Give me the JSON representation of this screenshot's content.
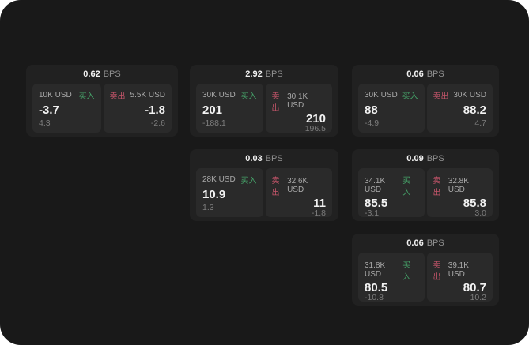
{
  "labels": {
    "bps": "BPS",
    "buy": "买入",
    "sell": "卖出"
  },
  "colors": {
    "page_background": "#191919",
    "card_background": "#212121",
    "panel_background": "#2a2a2a",
    "buy_green": "#45a168",
    "sell_red": "#c4556a"
  },
  "cards": [
    {
      "bps": "0.62",
      "buy": {
        "size": "10K USD",
        "value": "-3.7",
        "sub": "4.3"
      },
      "sell": {
        "size": "5.5K USD",
        "value": "-1.8",
        "sub": "-2.6"
      }
    },
    {
      "bps": "2.92",
      "buy": {
        "size": "30K USD",
        "value": "201",
        "sub": "-188.1"
      },
      "sell": {
        "size": "30.1K USD",
        "value": "210",
        "sub": "196.5"
      }
    },
    {
      "bps": "0.06",
      "buy": {
        "size": "30K USD",
        "value": "88",
        "sub": "-4.9"
      },
      "sell": {
        "size": "30K USD",
        "value": "88.2",
        "sub": "4.7"
      }
    },
    {
      "bps": "0.03",
      "buy": {
        "size": "28K USD",
        "value": "10.9",
        "sub": "1.3"
      },
      "sell": {
        "size": "32.6K USD",
        "value": "11",
        "sub": "-1.8"
      }
    },
    {
      "bps": "0.09",
      "buy": {
        "size": "34.1K USD",
        "value": "85.5",
        "sub": "-3.1"
      },
      "sell": {
        "size": "32.8K USD",
        "value": "85.8",
        "sub": "3.0"
      }
    },
    {
      "bps": "0.06",
      "buy": {
        "size": "31.8K USD",
        "value": "80.5",
        "sub": "-10.8"
      },
      "sell": {
        "size": "39.1K USD",
        "value": "80.7",
        "sub": "10.2"
      }
    }
  ]
}
